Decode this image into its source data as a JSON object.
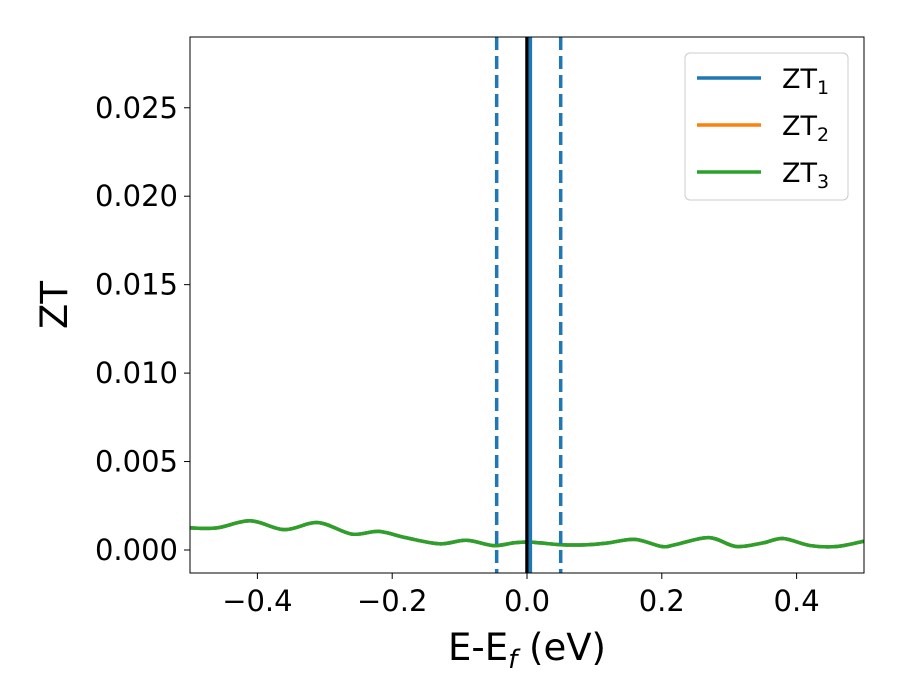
{
  "chart_data": {
    "type": "line",
    "xlabel": {
      "main": "E-E",
      "sub": "f",
      "suffix": " (eV)"
    },
    "ylabel": "ZT",
    "xlim": [
      -0.5,
      0.5
    ],
    "ylim": [
      -0.0013,
      0.029
    ],
    "xticks": [
      -0.4,
      -0.2,
      0.0,
      0.2,
      0.4
    ],
    "xtick_labels": [
      "−0.4",
      "−0.2",
      "0.0",
      "0.2",
      "0.4"
    ],
    "yticks": [
      0.0,
      0.005,
      0.01,
      0.015,
      0.02,
      0.025
    ],
    "ytick_labels": [
      "0.000",
      "0.005",
      "0.010",
      "0.015",
      "0.020",
      "0.025"
    ],
    "grid": false,
    "legend_position": "top-right",
    "x": [
      -0.5,
      -0.46,
      -0.41,
      -0.36,
      -0.31,
      -0.26,
      -0.22,
      -0.18,
      -0.13,
      -0.09,
      -0.05,
      -0.02,
      0.0,
      0.02,
      0.05,
      0.09,
      0.12,
      0.16,
      0.2,
      0.22,
      0.27,
      0.31,
      0.35,
      0.38,
      0.42,
      0.46,
      0.5
    ],
    "series": [
      {
        "name_main": "ZT",
        "name_sub": "1",
        "color": "#1f77b4",
        "values": [
          0.00125,
          0.00125,
          0.00165,
          0.00115,
          0.00155,
          0.0009,
          0.00105,
          0.0007,
          0.00035,
          0.00055,
          0.00025,
          0.0004,
          0.00045,
          0.0004,
          0.0003,
          0.0003,
          0.0004,
          0.0006,
          0.0002,
          0.0003,
          0.0007,
          0.0002,
          0.0004,
          0.00065,
          0.00025,
          0.0002,
          0.0005
        ]
      },
      {
        "name_main": "ZT",
        "name_sub": "2",
        "color": "#ff7f0e",
        "values": [
          0.00125,
          0.00125,
          0.00165,
          0.00115,
          0.00155,
          0.0009,
          0.00105,
          0.0007,
          0.00035,
          0.00055,
          0.00025,
          0.0004,
          0.00045,
          0.0004,
          0.0003,
          0.0003,
          0.0004,
          0.0006,
          0.0002,
          0.0003,
          0.0007,
          0.0002,
          0.0004,
          0.00065,
          0.00025,
          0.0002,
          0.0005
        ]
      },
      {
        "name_main": "ZT",
        "name_sub": "3",
        "color": "#2ca02c",
        "values": [
          0.00125,
          0.00125,
          0.00165,
          0.00115,
          0.00155,
          0.0009,
          0.00105,
          0.0007,
          0.00035,
          0.00055,
          0.00025,
          0.0004,
          0.00045,
          0.0004,
          0.0003,
          0.0003,
          0.0004,
          0.0006,
          0.0002,
          0.0003,
          0.0007,
          0.0002,
          0.0004,
          0.00065,
          0.00025,
          0.0002,
          0.0005
        ]
      }
    ],
    "vlines": [
      {
        "x": 0.0,
        "color": "#000000",
        "style": "solid"
      },
      {
        "x": 0.005,
        "color": "#1f77b4",
        "style": "solid"
      },
      {
        "x": -0.045,
        "color": "#1f77b4",
        "style": "dashed"
      },
      {
        "x": 0.05,
        "color": "#1f77b4",
        "style": "dashed"
      }
    ]
  }
}
